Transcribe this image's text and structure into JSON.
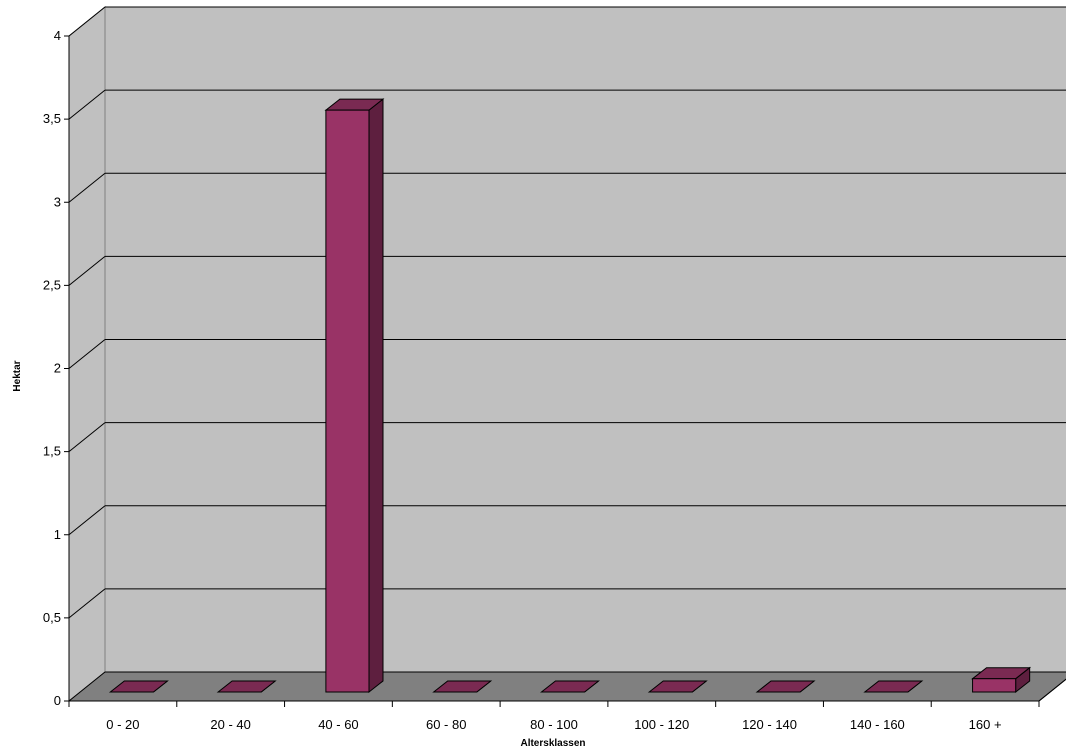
{
  "chart_data": {
    "type": "bar",
    "xlabel": "Altersklassen",
    "ylabel": "Hektar",
    "categories": [
      "0 - 20",
      "20 - 40",
      "40 - 60",
      "60 - 80",
      "80 - 100",
      "100 - 120",
      "120 - 140",
      "140 - 160",
      "160 +"
    ],
    "values": [
      0,
      0,
      3.5,
      0,
      0,
      0,
      0,
      0,
      0.08
    ],
    "ylim": [
      0,
      4
    ],
    "yticks": [
      "0",
      "0,5",
      "1",
      "1,5",
      "2",
      "2,5",
      "3",
      "3,5",
      "4"
    ],
    "grid": true,
    "legend": "none",
    "colors": {
      "bar_front": "#993366",
      "bar_side": "#5e1f3f",
      "bar_top": "#7a2a52",
      "wall": "#c0c0c0",
      "floor": "#808080"
    }
  }
}
